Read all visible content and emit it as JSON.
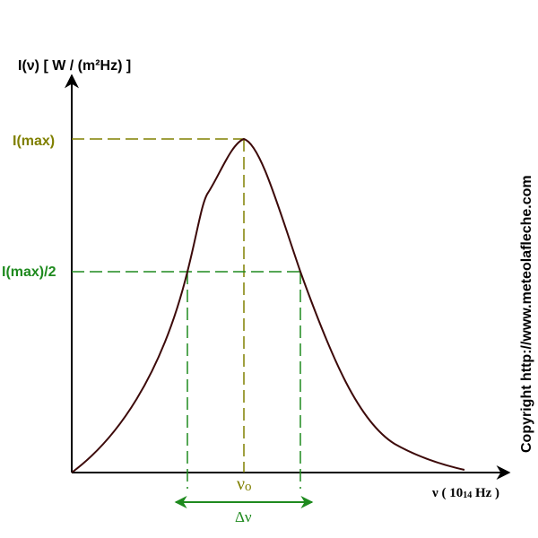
{
  "y_axis_label": "I(ν) [ W / (m²Hz) ]",
  "x_axis_label_prefix": "ν ( 10",
  "x_axis_label_exponent": "14",
  "x_axis_label_suffix": " Hz )",
  "imax_label": "I(max)",
  "ihalf_label": "I(max)/2",
  "nu0_label": "ν",
  "nu0_subscript": "o",
  "delta_nu_label": "Δν",
  "copyright": "Copyright http://www.meteolafleche.com",
  "colors": {
    "curve": "#3d0a0a",
    "axis": "#000000",
    "imax": "#808000",
    "ihalf": "#1e8a1e",
    "text": "#000000"
  }
}
